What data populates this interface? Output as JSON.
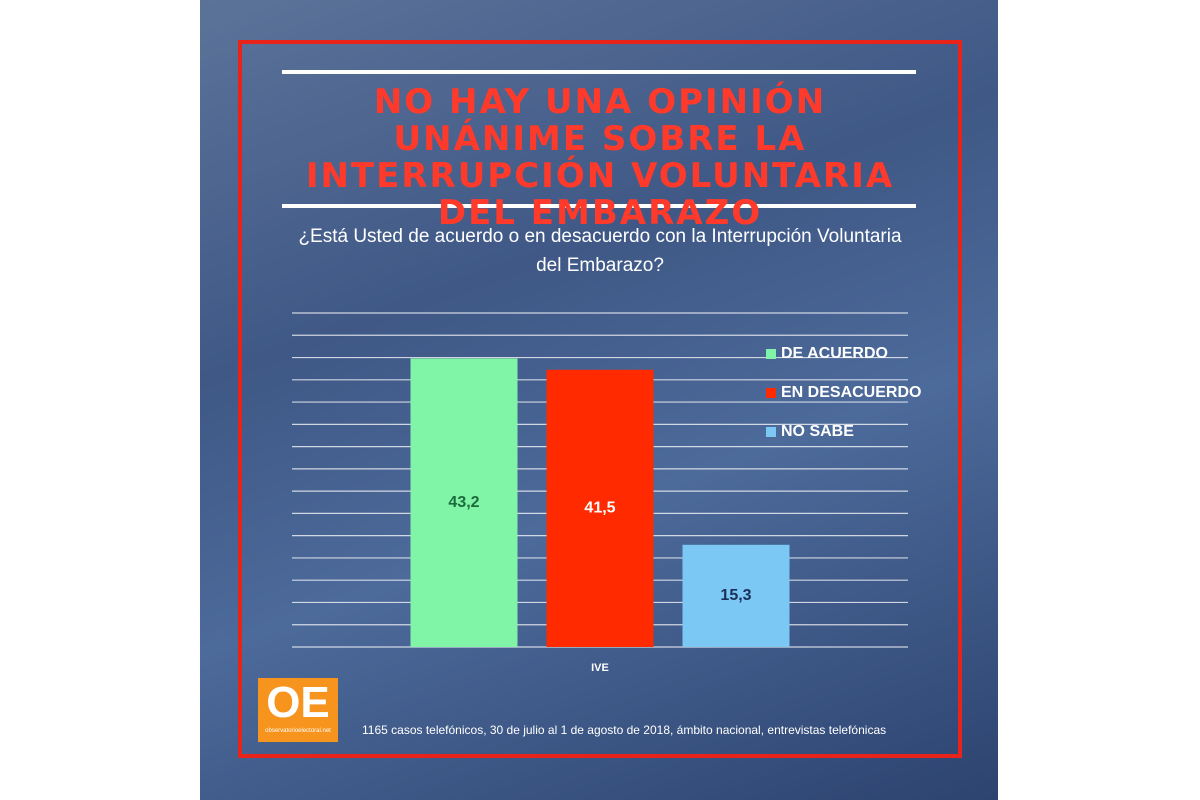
{
  "chart_data": {
    "type": "bar",
    "title": "NO HAY UNA OPINIÓN UNÁNIME SOBRE LA INTERRUPCIÓN VOLUNTARIA DEL EMBARAZO",
    "subtitle": "¿Está Usted de acuerdo o en desacuerdo con la Interrupción Voluntaria del Embarazo?",
    "categories": [
      "IVE"
    ],
    "series": [
      {
        "name": "DE ACUERDO",
        "color": "#80f5a8",
        "values": [
          43.2
        ],
        "value_labels": [
          "43,2"
        ]
      },
      {
        "name": "EN DESACUERDO",
        "color": "#ff2a00",
        "values": [
          41.5
        ],
        "value_labels": [
          "41,5"
        ]
      },
      {
        "name": "NO SABE",
        "color": "#7cc8f5",
        "values": [
          15.3
        ],
        "value_labels": [
          "15,3"
        ]
      }
    ],
    "ylim": [
      0,
      50
    ],
    "yticks": [
      0,
      3.33,
      6.67,
      10,
      13.33,
      16.67,
      20,
      23.33,
      26.67,
      30,
      33.33,
      36.67,
      40,
      43.33,
      46.67,
      50
    ],
    "grid": true,
    "legend": "upper right",
    "footnote": "1165 casos telefónicos, 30 de julio al 1 de agosto de 2018, ámbito nacional, entrevistas telefónicas"
  },
  "logo": {
    "text": "OE",
    "caption": "observatorioelectoral.net"
  }
}
